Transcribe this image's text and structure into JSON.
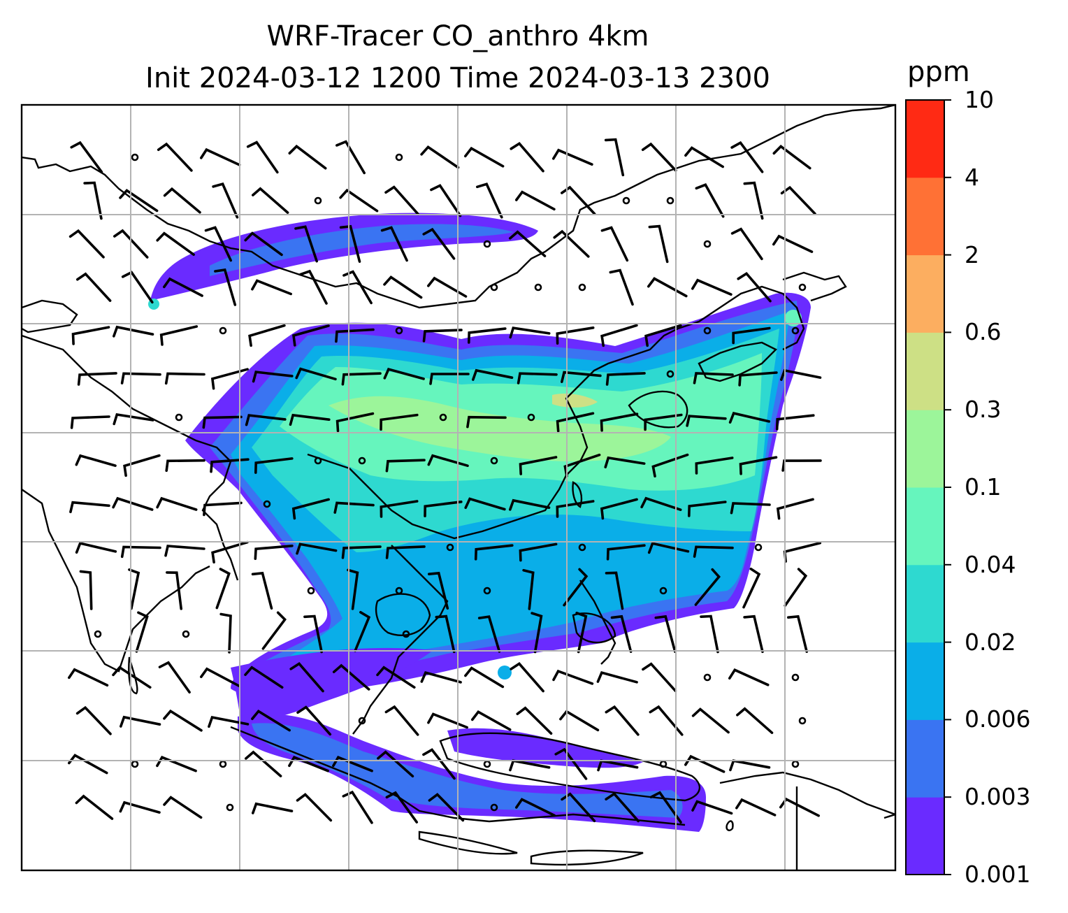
{
  "title_line1": "WRF-Tracer CO_anthro 4km",
  "title_line2": "Init 2024-03-12 1200 Time 2024-03-13 2300",
  "colorbar": {
    "unit": "ppm",
    "levels": [
      "0.001",
      "0.003",
      "0.006",
      "0.02",
      "0.04",
      "0.1",
      "0.3",
      "0.6",
      "2",
      "4",
      "10"
    ],
    "colors": [
      "#6a2bff",
      "#3a74f2",
      "#0aaee8",
      "#2ed9d0",
      "#66f5bd",
      "#9cf59a",
      "#cde085",
      "#fcae60",
      "#ff7135",
      "#ff2a14"
    ]
  },
  "map": {
    "gridlines": true,
    "field": "CO_anthro",
    "overlay": "wind-barbs",
    "coastlines": true
  }
}
